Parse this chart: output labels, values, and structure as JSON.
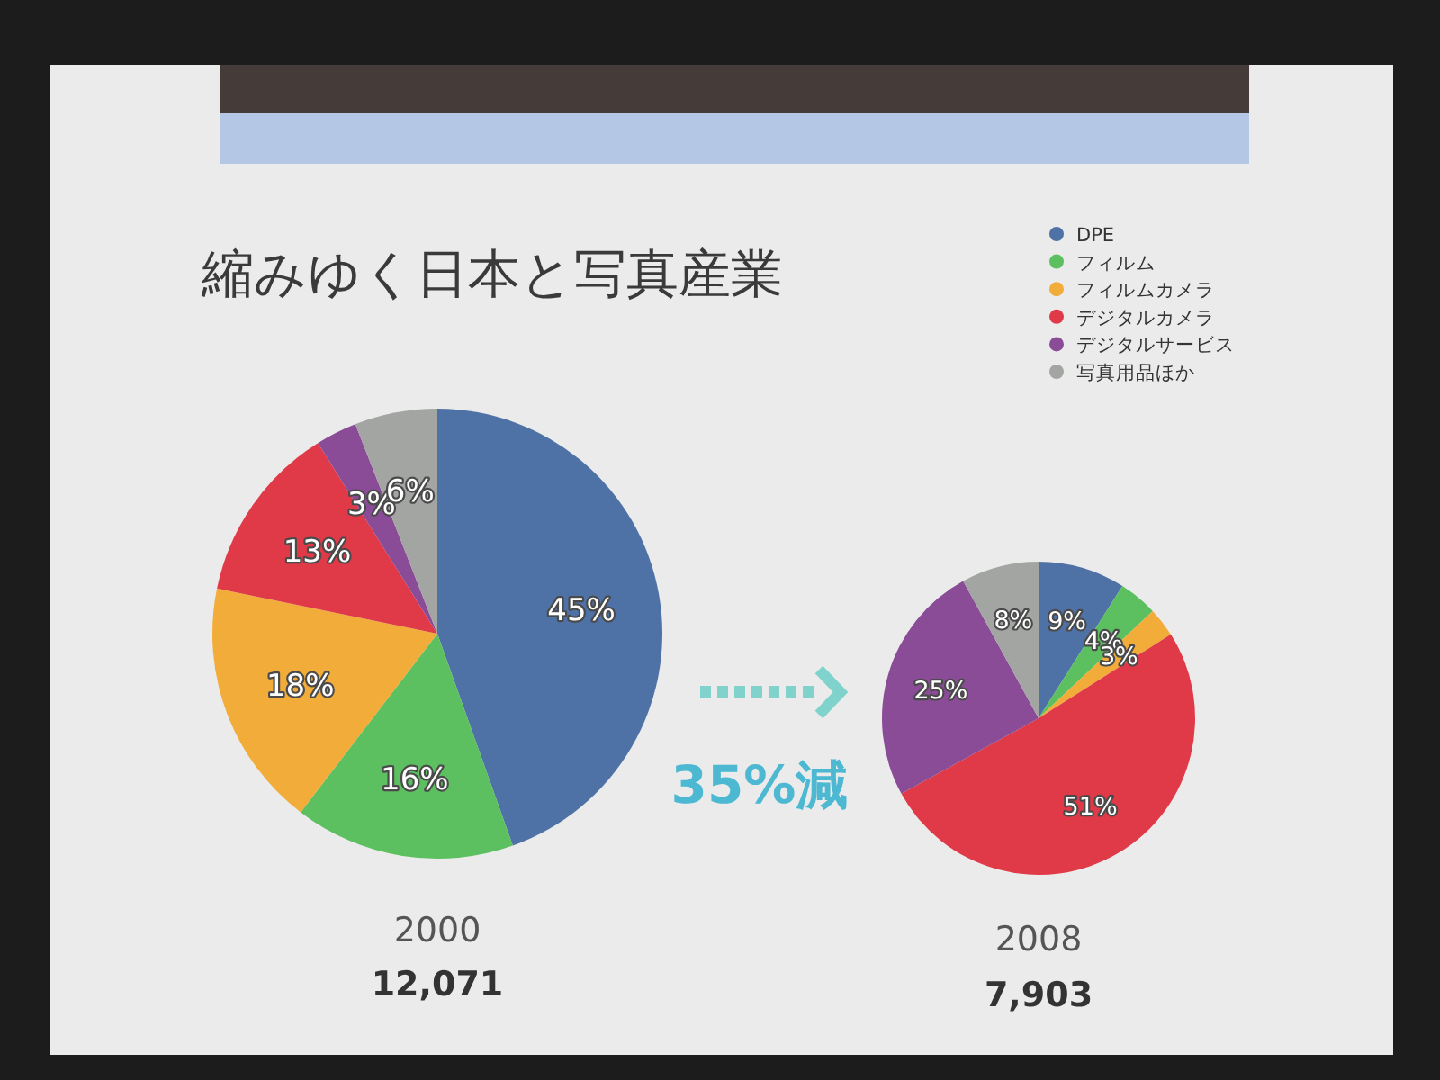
{
  "chart_data": {
    "type": "pie",
    "title": "縮みゆく日本と写真産業",
    "categories": [
      "DPE",
      "フィルム",
      "フィルムカメラ",
      "デジタルカメラ",
      "デジタルサービス",
      "写真用品ほか"
    ],
    "colors": [
      "#4f72a6",
      "#5cc060",
      "#f2ac3a",
      "#e03a48",
      "#8a4c96",
      "#a3a5a3"
    ],
    "series": [
      {
        "name": "2000",
        "values": [
          45,
          16,
          18,
          13,
          3,
          6
        ],
        "value_labels": [
          "45%",
          "16%",
          "18%",
          "13%",
          "3%",
          "6%"
        ]
      },
      {
        "name": "2008",
        "values": [
          9,
          4,
          3,
          51,
          25,
          8
        ],
        "value_labels": [
          "9%",
          "4%",
          "3%",
          "51%",
          "25%",
          "8%"
        ]
      }
    ],
    "annotations": [
      "12,071",
      "7,903",
      "35%減"
    ],
    "legend": "top right"
  }
}
